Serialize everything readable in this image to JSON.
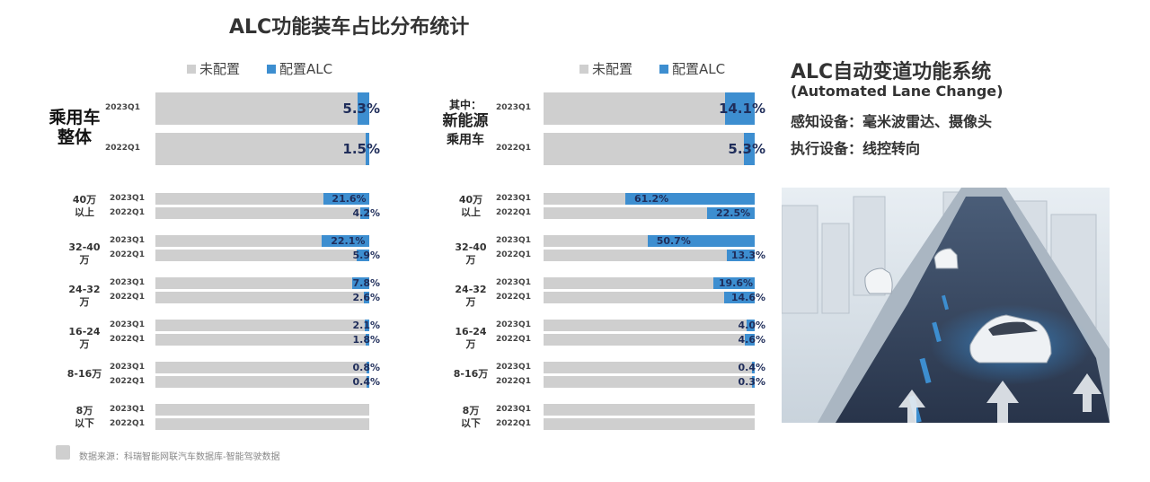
{
  "title": "ALC功能装车占比分布统计",
  "legend": {
    "unconfigured": "未配置",
    "configured": "配置ALC"
  },
  "colors": {
    "unconfigured": "#cfcfcf",
    "configured": "#3d8ed0",
    "value_text": "#1f2d5a"
  },
  "panels": {
    "left": {
      "header_label": [
        "乘用车",
        "整体"
      ],
      "header_periods": [
        "2023Q1",
        "2022Q1"
      ]
    },
    "right": {
      "header_label": [
        "其中：",
        "新能源",
        "乘用车"
      ],
      "header_periods": [
        "2023Q1",
        "2022Q1"
      ]
    }
  },
  "chart_data": [
    {
      "type": "bar",
      "title": "乘用车整体",
      "unit": "%",
      "orientation": "horizontal",
      "overall": {
        "label": "乘用车整体",
        "periods": [
          "2023Q1",
          "2022Q1"
        ],
        "values": [
          5.3,
          1.5
        ],
        "labels": [
          "5.3%",
          "1.5%"
        ]
      },
      "segments": [
        {
          "label": [
            "40万",
            "以上"
          ],
          "periods": [
            "2023Q1",
            "2022Q1"
          ],
          "values": [
            21.6,
            4.2
          ],
          "labels": [
            "21.6%",
            "4.2%"
          ]
        },
        {
          "label": [
            "32-40万"
          ],
          "periods": [
            "2023Q1",
            "2022Q1"
          ],
          "values": [
            22.1,
            5.9
          ],
          "labels": [
            "22.1%",
            "5.9%"
          ]
        },
        {
          "label": [
            "24-32万"
          ],
          "periods": [
            "2023Q1",
            "2022Q1"
          ],
          "values": [
            7.8,
            2.6
          ],
          "labels": [
            "7.8%",
            "2.6%"
          ]
        },
        {
          "label": [
            "16-24万"
          ],
          "periods": [
            "2023Q1",
            "2022Q1"
          ],
          "values": [
            2.1,
            1.8
          ],
          "labels": [
            "2.1%",
            "1.8%"
          ]
        },
        {
          "label": [
            "8-16万"
          ],
          "periods": [
            "2023Q1",
            "2022Q1"
          ],
          "values": [
            0.8,
            0.4
          ],
          "labels": [
            "0.8%",
            "0.4%"
          ]
        },
        {
          "label": [
            "8万",
            "以下"
          ],
          "periods": [
            "2023Q1",
            "2022Q1"
          ],
          "values": [
            0,
            0
          ],
          "labels": [
            "",
            ""
          ]
        }
      ]
    },
    {
      "type": "bar",
      "title": "其中：新能源乘用车",
      "unit": "%",
      "orientation": "horizontal",
      "overall": {
        "label": "新能源乘用车",
        "periods": [
          "2023Q1",
          "2022Q1"
        ],
        "values": [
          14.1,
          5.3
        ],
        "labels": [
          "14.1%",
          "5.3%"
        ]
      },
      "segments": [
        {
          "label": [
            "40万",
            "以上"
          ],
          "periods": [
            "2023Q1",
            "2022Q1"
          ],
          "values": [
            61.2,
            22.5
          ],
          "labels": [
            "61.2%",
            "22.5%"
          ]
        },
        {
          "label": [
            "32-40万"
          ],
          "periods": [
            "2023Q1",
            "2022Q1"
          ],
          "values": [
            50.7,
            13.3
          ],
          "labels": [
            "50.7%",
            "13.3%"
          ]
        },
        {
          "label": [
            "24-32万"
          ],
          "periods": [
            "2023Q1",
            "2022Q1"
          ],
          "values": [
            19.6,
            14.6
          ],
          "labels": [
            "19.6%",
            "14.6%"
          ]
        },
        {
          "label": [
            "16-24万"
          ],
          "periods": [
            "2023Q1",
            "2022Q1"
          ],
          "values": [
            4.0,
            4.6
          ],
          "labels": [
            "4.0%",
            "4.6%"
          ]
        },
        {
          "label": [
            "8-16万"
          ],
          "periods": [
            "2023Q1",
            "2022Q1"
          ],
          "values": [
            0.4,
            0.3
          ],
          "labels": [
            "0.4%",
            "0.3%"
          ]
        },
        {
          "label": [
            "8万",
            "以下"
          ],
          "periods": [
            "2023Q1",
            "2022Q1"
          ],
          "values": [
            0,
            0
          ],
          "labels": [
            "",
            ""
          ]
        }
      ]
    }
  ],
  "info": {
    "title": "ALC自动变道功能系统",
    "subtitle": "(Automated Lane Change)",
    "sensors": "感知设备：毫米波雷达、摄像头",
    "actuators": "执行设备：线控转向"
  },
  "source": "数据来源：科瑞智能网联汽车数据库-智能驾驶数据"
}
